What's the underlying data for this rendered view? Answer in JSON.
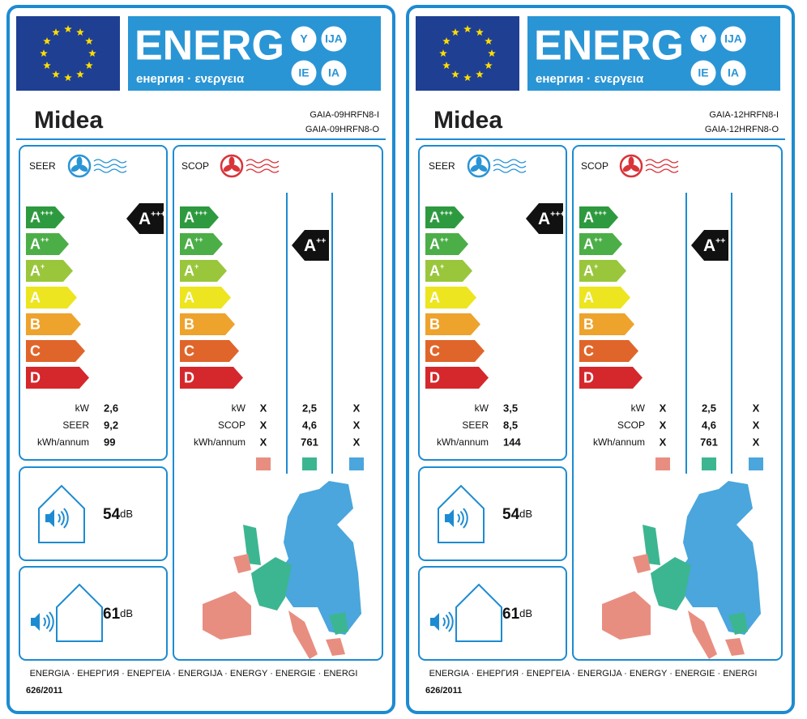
{
  "labels": [
    {
      "energy_title": "ENERG",
      "energy_subtitle": "енергия · ενεργεια",
      "lang_badges": [
        "Y",
        "IJA",
        "IE",
        "IA"
      ],
      "brand": "Midea",
      "models": [
        "GAIA-09HRFN8-I",
        "GAIA-09HRFN8-O"
      ],
      "seer": {
        "label": "SEER",
        "classes": [
          {
            "letter": "A",
            "sup": "+++"
          },
          {
            "letter": "A",
            "sup": "++"
          },
          {
            "letter": "A",
            "sup": "+"
          },
          {
            "letter": "A",
            "sup": ""
          },
          {
            "letter": "B",
            "sup": ""
          },
          {
            "letter": "C",
            "sup": ""
          },
          {
            "letter": "D",
            "sup": ""
          }
        ],
        "rating": {
          "letter": "A",
          "sup": "+++"
        },
        "rows": [
          {
            "name": "kW",
            "value": "2,6"
          },
          {
            "name": "SEER",
            "value": "9,2"
          },
          {
            "name": "kWh/annum",
            "value": "99"
          }
        ]
      },
      "scop": {
        "label": "SCOP",
        "classes": [
          {
            "letter": "A",
            "sup": "+++"
          },
          {
            "letter": "A",
            "sup": "++"
          },
          {
            "letter": "A",
            "sup": "+"
          },
          {
            "letter": "A",
            "sup": ""
          },
          {
            "letter": "B",
            "sup": ""
          },
          {
            "letter": "C",
            "sup": ""
          },
          {
            "letter": "D",
            "sup": ""
          }
        ],
        "rating": {
          "letter": "A",
          "sup": "++"
        },
        "rows": [
          {
            "name": "kW",
            "values": [
              "X",
              "2,5",
              "X"
            ]
          },
          {
            "name": "SCOP",
            "values": [
              "X",
              "4,6",
              "X"
            ]
          },
          {
            "name": "kWh/annum",
            "values": [
              "X",
              "761",
              "X"
            ]
          }
        ]
      },
      "indoor_noise": {
        "value": "54",
        "unit": "dB"
      },
      "outdoor_noise": {
        "value": "61",
        "unit": "dB"
      },
      "footer": "ENERGIA · ЕНЕРГИЯ · ΕΝΕΡΓΕΙΑ · ENERGIJA · ENERGY · ENERGIE · ENERGI",
      "regulation": "626/2011"
    },
    {
      "energy_title": "ENERG",
      "energy_subtitle": "енергия · ενεργεια",
      "lang_badges": [
        "Y",
        "IJA",
        "IE",
        "IA"
      ],
      "brand": "Midea",
      "models": [
        "GAIA-12HRFN8-I",
        "GAIA-12HRFN8-O"
      ],
      "seer": {
        "label": "SEER",
        "classes": [
          {
            "letter": "A",
            "sup": "+++"
          },
          {
            "letter": "A",
            "sup": "++"
          },
          {
            "letter": "A",
            "sup": "+"
          },
          {
            "letter": "A",
            "sup": ""
          },
          {
            "letter": "B",
            "sup": ""
          },
          {
            "letter": "C",
            "sup": ""
          },
          {
            "letter": "D",
            "sup": ""
          }
        ],
        "rating": {
          "letter": "A",
          "sup": "+++"
        },
        "rows": [
          {
            "name": "kW",
            "value": "3,5"
          },
          {
            "name": "SEER",
            "value": "8,5"
          },
          {
            "name": "kWh/annum",
            "value": "144"
          }
        ]
      },
      "scop": {
        "label": "SCOP",
        "classes": [
          {
            "letter": "A",
            "sup": "+++"
          },
          {
            "letter": "A",
            "sup": "++"
          },
          {
            "letter": "A",
            "sup": "+"
          },
          {
            "letter": "A",
            "sup": ""
          },
          {
            "letter": "B",
            "sup": ""
          },
          {
            "letter": "C",
            "sup": ""
          },
          {
            "letter": "D",
            "sup": ""
          }
        ],
        "rating": {
          "letter": "A",
          "sup": "++"
        },
        "rows": [
          {
            "name": "kW",
            "values": [
              "X",
              "2,5",
              "X"
            ]
          },
          {
            "name": "SCOP",
            "values": [
              "X",
              "4,6",
              "X"
            ]
          },
          {
            "name": "kWh/annum",
            "values": [
              "X",
              "761",
              "X"
            ]
          }
        ]
      },
      "indoor_noise": {
        "value": "54",
        "unit": "dB"
      },
      "outdoor_noise": {
        "value": "61",
        "unit": "dB"
      },
      "footer": "ENERGIA · ЕНЕРГИЯ · ΕΝΕΡΓΕΙΑ · ENERGIJA · ENERGY · ENERGIE · ENERGI",
      "regulation": "626/2011"
    }
  ]
}
